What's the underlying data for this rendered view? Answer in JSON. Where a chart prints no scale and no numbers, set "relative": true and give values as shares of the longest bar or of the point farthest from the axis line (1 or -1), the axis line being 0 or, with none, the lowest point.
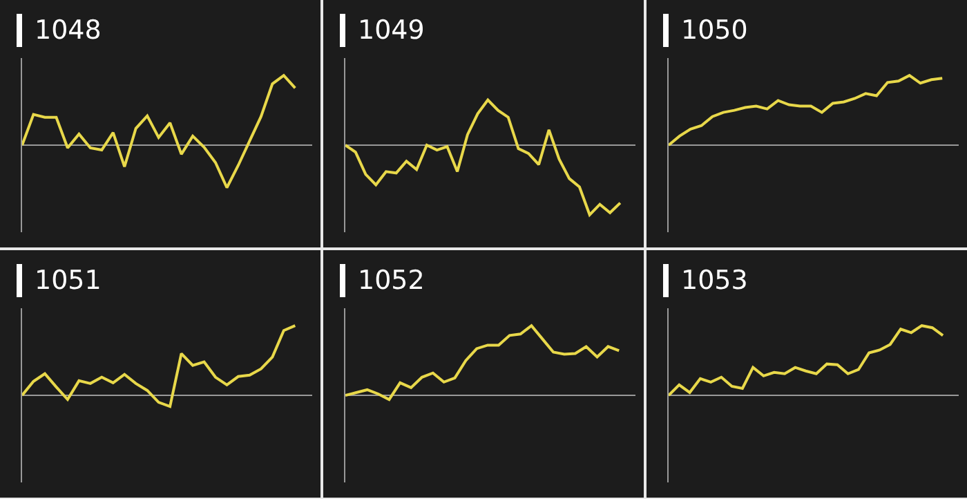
{
  "chart_data": [
    {
      "type": "line",
      "title": "1048",
      "relative": true,
      "color": "#e8d84a",
      "categories": [
        null,
        null,
        null,
        null,
        null,
        null,
        null,
        null,
        null,
        null,
        null,
        null,
        null,
        null,
        null,
        null,
        null,
        null,
        null,
        null,
        null,
        null,
        null,
        null,
        null
      ],
      "values": [
        0,
        0.44,
        0.4,
        0.4,
        -0.04,
        0.16,
        -0.04,
        -0.07,
        0.18,
        -0.31,
        0.24,
        0.42,
        0.11,
        0.32,
        -0.13,
        0.13,
        -0.03,
        -0.25,
        -0.61,
        -0.29,
        0.06,
        0.41,
        0.88,
        1,
        0.82
      ]
    },
    {
      "type": "line",
      "title": "1049",
      "relative": true,
      "color": "#e8d84a",
      "categories": [
        null,
        null,
        null,
        null,
        null,
        null,
        null,
        null,
        null,
        null,
        null,
        null,
        null,
        null,
        null,
        null,
        null,
        null,
        null,
        null,
        null,
        null,
        null,
        null,
        null,
        null,
        null,
        null
      ],
      "values": [
        0,
        -0.1,
        -0.42,
        -0.57,
        -0.38,
        -0.4,
        -0.23,
        -0.35,
        0,
        -0.07,
        -0.02,
        -0.38,
        0.15,
        0.45,
        0.65,
        0.5,
        0.4,
        -0.05,
        -0.12,
        -0.28,
        0.22,
        -0.2,
        -0.48,
        -0.6,
        -1,
        -0.85,
        -0.97,
        -0.83
      ]
    },
    {
      "type": "line",
      "title": "1050",
      "relative": true,
      "color": "#e8d84a",
      "categories": [
        null,
        null,
        null,
        null,
        null,
        null,
        null,
        null,
        null,
        null,
        null,
        null,
        null,
        null,
        null,
        null,
        null,
        null,
        null,
        null,
        null,
        null,
        null,
        null,
        null,
        null
      ],
      "values": [
        0,
        0.13,
        0.23,
        0.28,
        0.41,
        0.47,
        0.5,
        0.54,
        0.56,
        0.52,
        0.64,
        0.58,
        0.56,
        0.56,
        0.47,
        0.6,
        0.62,
        0.67,
        0.74,
        0.71,
        0.9,
        0.92,
        1,
        0.89,
        0.94,
        0.96
      ]
    },
    {
      "type": "line",
      "title": "1051",
      "relative": true,
      "color": "#e8d84a",
      "categories": [
        null,
        null,
        null,
        null,
        null,
        null,
        null,
        null,
        null,
        null,
        null,
        null,
        null,
        null,
        null,
        null,
        null,
        null,
        null,
        null,
        null,
        null,
        null,
        null,
        null
      ],
      "values": [
        0,
        0.2,
        0.31,
        0.12,
        -0.06,
        0.21,
        0.17,
        0.26,
        0.18,
        0.3,
        0.17,
        0.07,
        -0.1,
        -0.16,
        0.6,
        0.43,
        0.48,
        0.26,
        0.15,
        0.27,
        0.29,
        0.38,
        0.55,
        0.93,
        1
      ]
    },
    {
      "type": "line",
      "title": "1052",
      "relative": true,
      "color": "#e8d84a",
      "categories": [
        null,
        null,
        null,
        null,
        null,
        null,
        null,
        null,
        null,
        null,
        null,
        null,
        null,
        null,
        null,
        null,
        null,
        null,
        null,
        null,
        null,
        null,
        null,
        null,
        null,
        null
      ],
      "values": [
        0,
        0.04,
        0.08,
        0.02,
        -0.06,
        0.18,
        0.11,
        0.26,
        0.32,
        0.19,
        0.25,
        0.5,
        0.67,
        0.72,
        0.72,
        0.86,
        0.88,
        1,
        0.81,
        0.62,
        0.59,
        0.6,
        0.7,
        0.55,
        0.7,
        0.64
      ]
    },
    {
      "type": "line",
      "title": "1053",
      "relative": true,
      "color": "#e8d84a",
      "categories": [
        null,
        null,
        null,
        null,
        null,
        null,
        null,
        null,
        null,
        null,
        null,
        null,
        null,
        null,
        null,
        null,
        null,
        null,
        null,
        null,
        null,
        null,
        null,
        null,
        null,
        null,
        null
      ],
      "values": [
        0,
        0.15,
        0.04,
        0.24,
        0.19,
        0.26,
        0.13,
        0.1,
        0.4,
        0.28,
        0.33,
        0.31,
        0.4,
        0.35,
        0.31,
        0.45,
        0.44,
        0.31,
        0.37,
        0.61,
        0.65,
        0.73,
        0.95,
        0.9,
        1,
        0.97,
        0.86
      ]
    }
  ]
}
